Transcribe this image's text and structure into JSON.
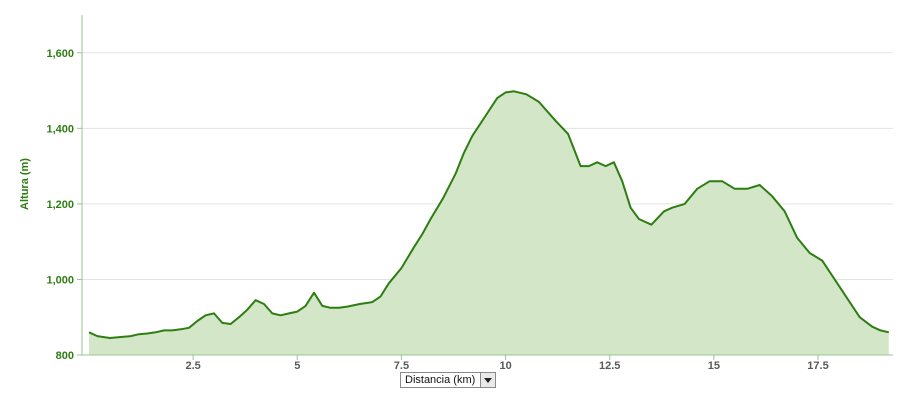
{
  "chart_data": {
    "type": "area",
    "title": "",
    "xlabel": "",
    "ylabel": "Altura (m)",
    "xlim": [
      0,
      19.3
    ],
    "ylim": [
      800,
      1700
    ],
    "x_ticks": [
      2.5,
      5,
      7.5,
      10,
      12.5,
      15,
      17.5
    ],
    "x_tick_labels": [
      "2.5",
      "5",
      "7.5",
      "10",
      "12.5",
      "15",
      "17.5"
    ],
    "y_ticks": [
      800,
      1000,
      1200,
      1400,
      1600
    ],
    "y_tick_labels": [
      "800",
      "1,000",
      "1,200",
      "1,400",
      "1,600"
    ],
    "grid": true,
    "legend": "none",
    "colors": {
      "line": "#2e7d12",
      "fill": "#d3e7c8",
      "grid": "#e3e3e3",
      "axis": "#9bc490"
    },
    "series": [
      {
        "x": [
          0.0,
          0.2,
          0.5,
          0.8,
          1.0,
          1.2,
          1.4,
          1.6,
          1.8,
          2.0,
          2.2,
          2.4,
          2.6,
          2.8,
          3.0,
          3.2,
          3.4,
          3.6,
          3.8,
          4.0,
          4.2,
          4.4,
          4.6,
          4.8,
          5.0,
          5.2,
          5.4,
          5.6,
          5.8,
          6.0,
          6.2,
          6.5,
          6.8,
          7.0,
          7.2,
          7.5,
          7.8,
          8.0,
          8.2,
          8.5,
          8.8,
          9.0,
          9.2,
          9.5,
          9.8,
          10.0,
          10.2,
          10.5,
          10.8,
          11.0,
          11.2,
          11.5,
          11.8,
          12.0,
          12.2,
          12.4,
          12.6,
          12.8,
          13.0,
          13.2,
          13.5,
          13.8,
          14.0,
          14.3,
          14.6,
          14.9,
          15.2,
          15.5,
          15.8,
          16.1,
          16.4,
          16.7,
          17.0,
          17.3,
          17.6,
          17.9,
          18.2,
          18.5,
          18.8,
          19.0,
          19.2
        ],
        "y": [
          860,
          850,
          845,
          848,
          850,
          855,
          857,
          860,
          865,
          865,
          868,
          872,
          890,
          905,
          910,
          885,
          882,
          900,
          920,
          945,
          935,
          910,
          905,
          910,
          915,
          930,
          965,
          930,
          925,
          925,
          928,
          935,
          940,
          955,
          990,
          1030,
          1085,
          1120,
          1160,
          1215,
          1280,
          1335,
          1380,
          1430,
          1480,
          1495,
          1498,
          1490,
          1470,
          1445,
          1420,
          1385,
          1300,
          1300,
          1310,
          1300,
          1310,
          1260,
          1190,
          1160,
          1145,
          1180,
          1190,
          1200,
          1240,
          1260,
          1260,
          1240,
          1240,
          1250,
          1220,
          1180,
          1110,
          1070,
          1050,
          1000,
          950,
          900,
          875,
          865,
          860
        ]
      }
    ]
  },
  "x_selector": {
    "label": "Distancia (km)"
  }
}
